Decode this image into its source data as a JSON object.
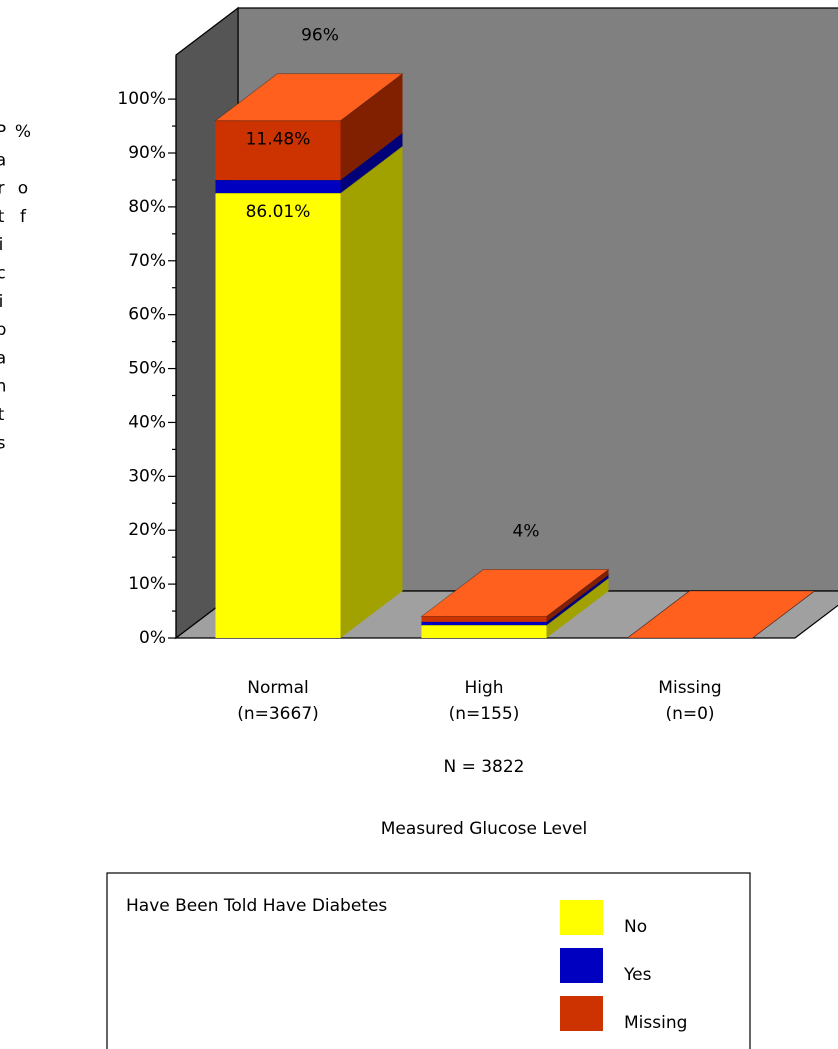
{
  "chart_data": {
    "type": "bar3d_stacked",
    "y_label": "% of Participants",
    "x_label": "Measured Glucose Level",
    "n_total": "N = 3822",
    "legend_title": "Have Been Told Have Diabetes",
    "categories": [
      "Normal",
      "High",
      "Missing"
    ],
    "category_counts": [
      "(n=3667)",
      "(n=155)",
      "(n=0)"
    ],
    "total_labels": [
      "96%",
      "4%",
      null
    ],
    "series": [
      {
        "name": "No",
        "color": "#ffff00",
        "values": [
          82.57,
          2.4,
          0
        ],
        "segment_labels": [
          "86.01%",
          null,
          null
        ]
      },
      {
        "name": "Yes",
        "color": "#0000c0",
        "values": [
          2.41,
          0.6,
          0
        ]
      },
      {
        "name": "Missing",
        "color": "#cc3300",
        "values": [
          11.02,
          1.0,
          0
        ],
        "segment_labels": [
          "11.48%",
          null,
          null
        ]
      }
    ],
    "ylim": [
      0,
      108
    ],
    "yticks": [
      {
        "value": 0,
        "label": "0%"
      },
      {
        "value": 10,
        "label": "10%"
      },
      {
        "value": 20,
        "label": "20%"
      },
      {
        "value": 30,
        "label": "30%"
      },
      {
        "value": 40,
        "label": "40%"
      },
      {
        "value": 50,
        "label": "50%"
      },
      {
        "value": 60,
        "label": "60%"
      },
      {
        "value": 70,
        "label": "70%"
      },
      {
        "value": 80,
        "label": "80%"
      },
      {
        "value": 90,
        "label": "90%"
      },
      {
        "value": 100,
        "label": "100%"
      }
    ]
  }
}
